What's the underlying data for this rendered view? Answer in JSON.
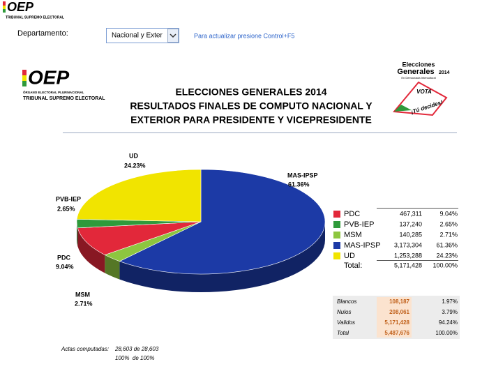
{
  "top_logo": {
    "acronym": "OEP",
    "line1": "TRIBUNAL SUPREMO ELECTORAL"
  },
  "header": {
    "departamento_label": "Departamento:",
    "select_value": "Nacional y Exter",
    "refresh_hint": "Para actualizar presione Control+F5"
  },
  "logo": {
    "acronym": "OEP",
    "line1": "ÓRGANO ELECTORAL PLURINACIONAL",
    "line2": "TRIBUNAL SUPREMO ELECTORAL"
  },
  "election_logo": {
    "line1": "Elecciones",
    "line2": "Generales",
    "year": "2014",
    "tagline": "En Democracia Intercultural",
    "vote": "VOTA",
    "slogan": "¡Tú decides!"
  },
  "chart_data": {
    "type": "pie",
    "title": [
      "ELECCIONES GENERALES 2014",
      "RESULTADOS FINALES DE COMPUTO NACIONAL Y",
      "EXTERIOR PARA PRESIDENTE Y VICEPRESIDENTE"
    ],
    "categories": [
      "MAS-IPSP",
      "MSM",
      "PDC",
      "PVB-IEP",
      "UD"
    ],
    "values": [
      61.36,
      2.71,
      9.04,
      2.65,
      24.23
    ],
    "value_labels": [
      "61.36%",
      "2.71%",
      "9.04%",
      "2.65%",
      "24.23%"
    ],
    "colors": [
      "#1c3aa6",
      "#8dc63f",
      "#e2283a",
      "#2f9a3b",
      "#f1e400"
    ]
  },
  "results_table": {
    "rows": [
      [
        "PDC",
        "467,311",
        "9.04%"
      ],
      [
        "PVB-IEP",
        "137,240",
        "2.65%"
      ],
      [
        "MSM",
        "140,285",
        "2.71%"
      ],
      [
        "MAS-IPSP",
        "3,173,304",
        "61.36%"
      ],
      [
        "UD",
        "1,253,288",
        "24.23%"
      ]
    ],
    "total": [
      "Total:",
      "5,171,428",
      "100.00%"
    ]
  },
  "summary_table": {
    "rows": [
      [
        "Blancos",
        "108,187",
        "1.97%"
      ],
      [
        "Nulos",
        "208,061",
        "3.79%"
      ],
      [
        "Validos",
        "5,171,428",
        "94.24%"
      ],
      [
        "Total",
        "5,487,676",
        "100.00%"
      ]
    ]
  },
  "actas": {
    "label": "Actas computadas:",
    "count": "28,603 de 28,603",
    "percent": "100%  de 100%"
  }
}
